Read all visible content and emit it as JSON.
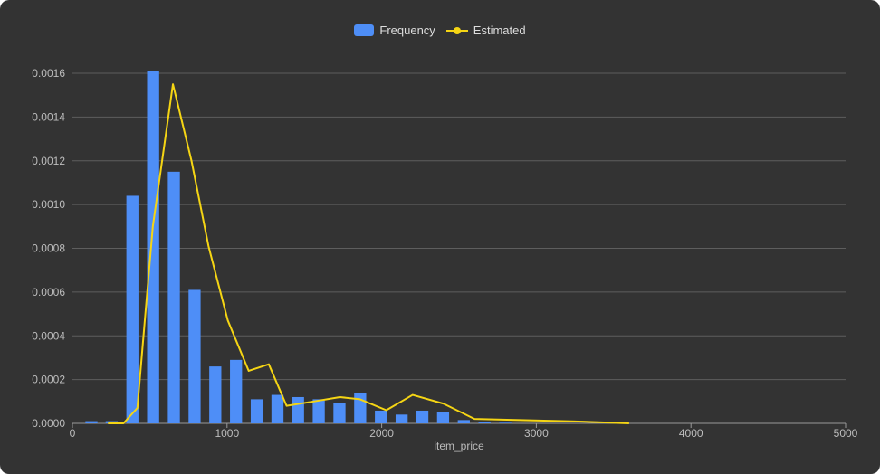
{
  "chart_data": {
    "type": "bar",
    "xlabel": "item_price",
    "ylabel": "",
    "xlim": [
      0,
      5000
    ],
    "ylim": [
      0,
      0.0016
    ],
    "x_ticks": [
      {
        "value": 0,
        "label": "0"
      },
      {
        "value": 1000,
        "label": "1000"
      },
      {
        "value": 2000,
        "label": "2000"
      },
      {
        "value": 3000,
        "label": "3000"
      },
      {
        "value": 4000,
        "label": "4000"
      },
      {
        "value": 5000,
        "label": "5000"
      }
    ],
    "y_ticks": [
      {
        "value": 0,
        "label": "0.0000"
      },
      {
        "value": 0.0002,
        "label": "0.0002"
      },
      {
        "value": 0.0004,
        "label": "0.0004"
      },
      {
        "value": 0.0006,
        "label": "0.0006"
      },
      {
        "value": 0.0008,
        "label": "0.0008"
      },
      {
        "value": 0.001,
        "label": "0.0010"
      },
      {
        "value": 0.0012,
        "label": "0.0012"
      },
      {
        "value": 0.0014,
        "label": "0.0014"
      },
      {
        "value": 0.0016,
        "label": "0.0016"
      }
    ],
    "grid": true,
    "legend_position": "top",
    "bar_width": 78,
    "series": [
      {
        "name": "Frequency",
        "type": "bar",
        "color": "#4e8ef7",
        "x": [
          123,
          254,
          388,
          522,
          656,
          790,
          924,
          1058,
          1192,
          1326,
          1459,
          1593,
          1727,
          1861,
          1995,
          2129,
          2263,
          2397,
          2531,
          2665,
          2799
        ],
        "values": [
          1e-05,
          1e-05,
          0.00104,
          0.00161,
          0.00115,
          0.00061,
          0.00026,
          0.00029,
          0.00011,
          0.00013,
          0.00012,
          0.00011,
          9.5e-05,
          0.00014,
          5.8e-05,
          4e-05,
          5.8e-05,
          5.3e-05,
          1.5e-05,
          5e-06,
          3e-06
        ]
      },
      {
        "name": "Estimated",
        "type": "line",
        "color": "#f5d514",
        "x": [
          230,
          330,
          420,
          520,
          650,
          770,
          880,
          1005,
          1140,
          1270,
          1385,
          1560,
          1730,
          1860,
          2030,
          2200,
          2400,
          2600,
          2900,
          3300,
          3600
        ],
        "values": [
          0,
          0,
          7e-05,
          0.0009,
          0.00155,
          0.0012,
          0.00081,
          0.00047,
          0.00024,
          0.00027,
          8e-05,
          0.0001,
          0.00012,
          0.00011,
          6e-05,
          0.00013,
          9e-05,
          2e-05,
          1.5e-05,
          8e-06,
          0
        ]
      }
    ]
  }
}
